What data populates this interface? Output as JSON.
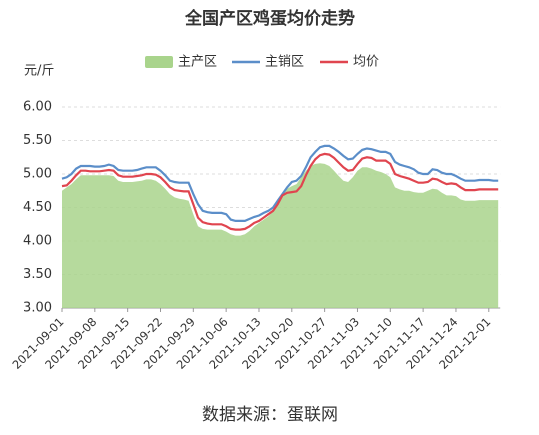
{
  "chart_data": {
    "type": "line",
    "title": "全国产区鸡蛋均价走势",
    "y_label": "元/斤",
    "source": "数据来源：蛋联网",
    "categories": [
      "2021-09-01",
      null,
      null,
      null,
      null,
      null,
      null,
      "2021-09-08",
      null,
      null,
      null,
      null,
      null,
      null,
      "2021-09-15",
      null,
      null,
      null,
      null,
      null,
      null,
      "2021-09-22",
      null,
      null,
      null,
      null,
      null,
      null,
      "2021-09-29",
      null,
      null,
      null,
      null,
      null,
      null,
      "2021-10-06",
      null,
      null,
      null,
      null,
      null,
      null,
      "2021-10-13",
      null,
      null,
      null,
      null,
      null,
      null,
      "2021-10-20",
      null,
      null,
      null,
      null,
      null,
      null,
      "2021-10-27",
      null,
      null,
      null,
      null,
      null,
      null,
      "2021-11-03",
      null,
      null,
      null,
      null,
      null,
      null,
      "2021-11-10",
      null,
      null,
      null,
      null,
      null,
      null,
      "2021-11-17",
      null,
      null,
      null,
      null,
      null,
      null,
      "2021-11-24",
      null,
      null,
      null,
      null,
      null,
      null,
      "2021-12-01",
      null,
      null
    ],
    "series": [
      {
        "name": "主产区",
        "kind": "area",
        "color": "#a9d48c",
        "values": [
          4.75,
          4.8,
          4.85,
          4.92,
          4.98,
          4.98,
          4.98,
          4.98,
          4.98,
          4.98,
          4.98,
          4.97,
          4.9,
          4.88,
          4.88,
          4.88,
          4.89,
          4.9,
          4.92,
          4.92,
          4.9,
          4.85,
          4.78,
          4.7,
          4.65,
          4.63,
          4.62,
          4.6,
          4.4,
          4.22,
          4.18,
          4.17,
          4.17,
          4.17,
          4.17,
          4.14,
          4.1,
          4.08,
          4.08,
          4.1,
          4.15,
          4.22,
          4.27,
          4.32,
          4.37,
          4.44,
          4.55,
          4.7,
          4.78,
          4.82,
          4.85,
          4.95,
          5.05,
          5.12,
          5.15,
          5.16,
          5.15,
          5.12,
          5.05,
          4.97,
          4.9,
          4.88,
          4.95,
          5.05,
          5.1,
          5.1,
          5.08,
          5.05,
          5.03,
          5.0,
          4.95,
          4.8,
          4.77,
          4.75,
          4.75,
          4.73,
          4.72,
          4.72,
          4.75,
          4.78,
          4.77,
          4.72,
          4.68,
          4.68,
          4.67,
          4.62,
          4.6,
          4.6,
          4.6,
          4.61,
          4.61,
          4.61,
          4.61,
          4.61
        ]
      },
      {
        "name": "主销区",
        "kind": "line",
        "color": "#5b8ec9",
        "values": [
          4.93,
          4.95,
          5.0,
          5.08,
          5.12,
          5.12,
          5.12,
          5.11,
          5.11,
          5.12,
          5.14,
          5.12,
          5.06,
          5.05,
          5.05,
          5.05,
          5.06,
          5.08,
          5.1,
          5.1,
          5.1,
          5.05,
          4.98,
          4.9,
          4.88,
          4.87,
          4.87,
          4.87,
          4.7,
          4.55,
          4.45,
          4.43,
          4.42,
          4.42,
          4.42,
          4.4,
          4.32,
          4.3,
          4.3,
          4.3,
          4.33,
          4.36,
          4.38,
          4.42,
          4.45,
          4.5,
          4.6,
          4.7,
          4.8,
          4.88,
          4.9,
          4.97,
          5.1,
          5.25,
          5.33,
          5.4,
          5.42,
          5.42,
          5.38,
          5.33,
          5.27,
          5.22,
          5.23,
          5.3,
          5.36,
          5.38,
          5.37,
          5.35,
          5.33,
          5.33,
          5.3,
          5.18,
          5.14,
          5.12,
          5.1,
          5.07,
          5.02,
          5.0,
          5.0,
          5.07,
          5.06,
          5.02,
          5.0,
          5.0,
          4.97,
          4.93,
          4.9,
          4.9,
          4.9,
          4.91,
          4.91,
          4.91,
          4.9,
          4.9
        ]
      },
      {
        "name": "均价",
        "kind": "line",
        "color": "#e0454f",
        "values": [
          4.82,
          4.83,
          4.9,
          4.98,
          5.05,
          5.05,
          5.04,
          5.04,
          5.04,
          5.05,
          5.06,
          5.05,
          4.98,
          4.96,
          4.96,
          4.96,
          4.97,
          4.98,
          5.0,
          5.0,
          4.99,
          4.95,
          4.88,
          4.8,
          4.76,
          4.75,
          4.74,
          4.74,
          4.55,
          4.35,
          4.28,
          4.26,
          4.25,
          4.25,
          4.25,
          4.22,
          4.18,
          4.17,
          4.17,
          4.18,
          4.22,
          4.27,
          4.3,
          4.35,
          4.4,
          4.45,
          4.55,
          4.68,
          4.72,
          4.73,
          4.74,
          4.82,
          4.98,
          5.12,
          5.22,
          5.28,
          5.3,
          5.29,
          5.24,
          5.17,
          5.1,
          5.05,
          5.06,
          5.15,
          5.23,
          5.25,
          5.24,
          5.2,
          5.2,
          5.2,
          5.15,
          5.0,
          4.97,
          4.95,
          4.93,
          4.9,
          4.87,
          4.87,
          4.88,
          4.93,
          4.92,
          4.88,
          4.85,
          4.86,
          4.85,
          4.8,
          4.76,
          4.76,
          4.76,
          4.77,
          4.77,
          4.77,
          4.77,
          4.77
        ]
      }
    ],
    "ylim": [
      3,
      6
    ],
    "yticks": [
      {
        "value": 3,
        "label": "3.00"
      },
      {
        "value": 3.5,
        "label": "3.50"
      },
      {
        "value": 4,
        "label": "4.00"
      },
      {
        "value": 4.5,
        "label": "4.50"
      },
      {
        "value": 5,
        "label": "5.00"
      },
      {
        "value": 5.5,
        "label": "5.50"
      },
      {
        "value": 6,
        "label": "6.00"
      }
    ],
    "grid": true
  }
}
